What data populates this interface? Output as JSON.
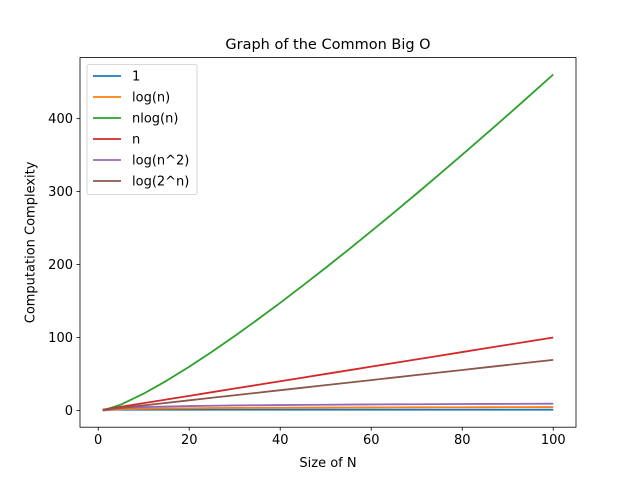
{
  "chart_data": {
    "type": "line",
    "title": "Graph of the Common Big O",
    "xlabel": "Size of N",
    "ylabel": "Computation Complexity",
    "xlim": [
      -4,
      105
    ],
    "ylim": [
      -23.0,
      483.7
    ],
    "x_ticks": [
      0,
      20,
      40,
      60,
      80,
      100
    ],
    "y_ticks": [
      0,
      100,
      200,
      300,
      400
    ],
    "x_tick_labels": [
      "0",
      "20",
      "40",
      "60",
      "80",
      "100"
    ],
    "y_tick_labels": [
      "0",
      "100",
      "200",
      "300",
      "400"
    ],
    "grid": false,
    "legend_position": "top-left",
    "x": [
      1,
      5,
      10,
      15,
      20,
      25,
      30,
      35,
      40,
      45,
      50,
      55,
      60,
      65,
      70,
      75,
      80,
      85,
      90,
      95,
      100
    ],
    "series": [
      {
        "name": "1",
        "color": "#1f77b4",
        "values": [
          1,
          1,
          1,
          1,
          1,
          1,
          1,
          1,
          1,
          1,
          1,
          1,
          1,
          1,
          1,
          1,
          1,
          1,
          1,
          1,
          1
        ]
      },
      {
        "name": "log(n)",
        "color": "#ff7f0e",
        "values": [
          0.0,
          1.61,
          2.3,
          2.71,
          3.0,
          3.22,
          3.4,
          3.56,
          3.69,
          3.81,
          3.91,
          4.01,
          4.09,
          4.17,
          4.25,
          4.32,
          4.38,
          4.44,
          4.5,
          4.55,
          4.61
        ]
      },
      {
        "name": "nlog(n)",
        "color": "#2ca02c",
        "values": [
          0.0,
          8.05,
          23.03,
          40.62,
          59.91,
          80.47,
          102.04,
          124.44,
          147.56,
          171.3,
          195.6,
          220.4,
          245.66,
          271.33,
          297.39,
          323.81,
          350.55,
          377.61,
          404.98,
          432.62,
          460.52
        ]
      },
      {
        "name": "n",
        "color": "#d62728",
        "values": [
          1,
          5,
          10,
          15,
          20,
          25,
          30,
          35,
          40,
          45,
          50,
          55,
          60,
          65,
          70,
          75,
          80,
          85,
          90,
          95,
          100
        ]
      },
      {
        "name": "log(n^2)",
        "color": "#9467bd",
        "values": [
          0.0,
          3.22,
          4.61,
          5.42,
          5.99,
          6.44,
          6.8,
          7.11,
          7.38,
          7.61,
          7.82,
          8.01,
          8.19,
          8.35,
          8.5,
          8.63,
          8.76,
          8.89,
          9.0,
          9.11,
          9.21
        ]
      },
      {
        "name": "log(2^n)",
        "color": "#8c564b",
        "values": [
          0.69,
          3.47,
          6.93,
          10.4,
          13.86,
          17.33,
          20.79,
          24.26,
          27.73,
          31.19,
          34.66,
          38.12,
          41.59,
          45.05,
          48.52,
          51.99,
          55.45,
          58.92,
          62.38,
          65.85,
          69.31
        ]
      }
    ]
  }
}
